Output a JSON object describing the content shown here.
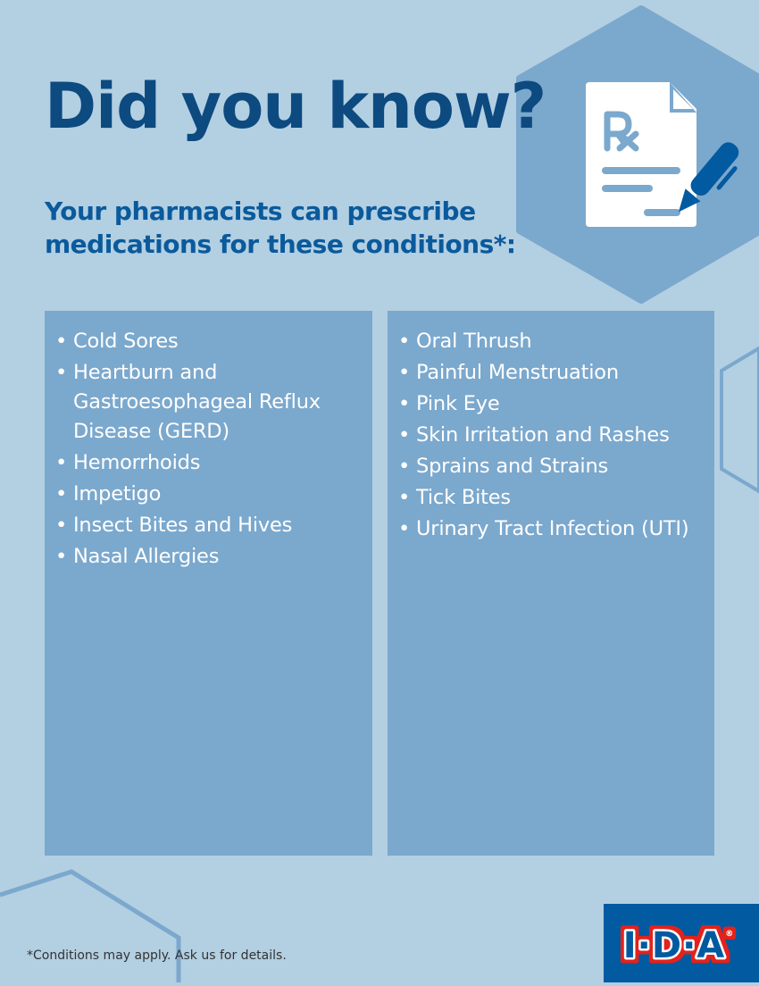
{
  "title": "Did you know?",
  "subtitle": "Your pharmacists can prescribe medications for these conditions*:",
  "left_conditions": [
    "Cold Sores",
    "Heartburn and Gastroesophageal Reflux Disease (GERD)",
    "Hemorrhoids",
    "Impetigo",
    "Insect Bites and Hives",
    "Nasal Allergies"
  ],
  "right_conditions": [
    "Oral Thrush",
    "Painful Menstruation",
    "Pink Eye",
    "Skin Irritation and Rashes",
    "Sprains and Strains",
    "Tick Bites",
    "Urinary Tract Infection (UTI)"
  ],
  "footnote": "*Conditions may apply. Ask us for details.",
  "logo": {
    "text": "I·D·A",
    "registered": "®"
  },
  "icon": "prescription-pen-icon",
  "colors": {
    "background": "#b3cfe2",
    "panel": "#7ba8cd",
    "title": "#0c4a80",
    "logo_bg": "#025aa0",
    "logo_red": "#e2231a"
  }
}
